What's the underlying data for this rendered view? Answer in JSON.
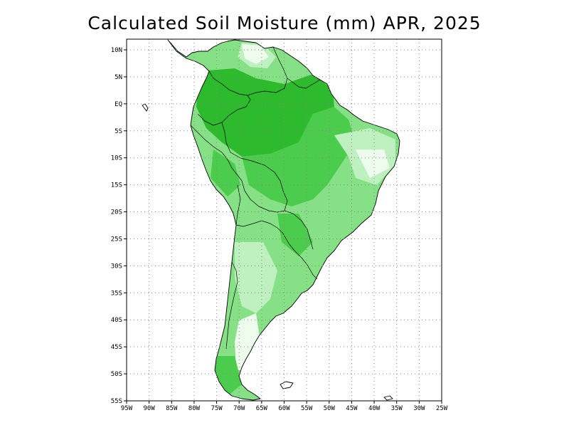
{
  "title": "Calculated Soil Moisture (mm) APR, 2025",
  "map": {
    "lon_ticks": [
      "95W",
      "90W",
      "85W",
      "80W",
      "75W",
      "70W",
      "65W",
      "60W",
      "55W",
      "50W",
      "45W",
      "40W",
      "35W",
      "30W",
      "25W"
    ],
    "lat_ticks": [
      "10N",
      "5N",
      "EQ",
      "5S",
      "10S",
      "15S",
      "20S",
      "25S",
      "30S",
      "35S",
      "40S",
      "45S",
      "50S",
      "55S"
    ],
    "grid": true,
    "colors": {
      "wettest": "#2dba2d",
      "wet": "#4ccc4c",
      "moderate": "#86e186",
      "dry": "#bff0bf",
      "driest": "#eefcee",
      "background": "#ffffff"
    }
  }
}
